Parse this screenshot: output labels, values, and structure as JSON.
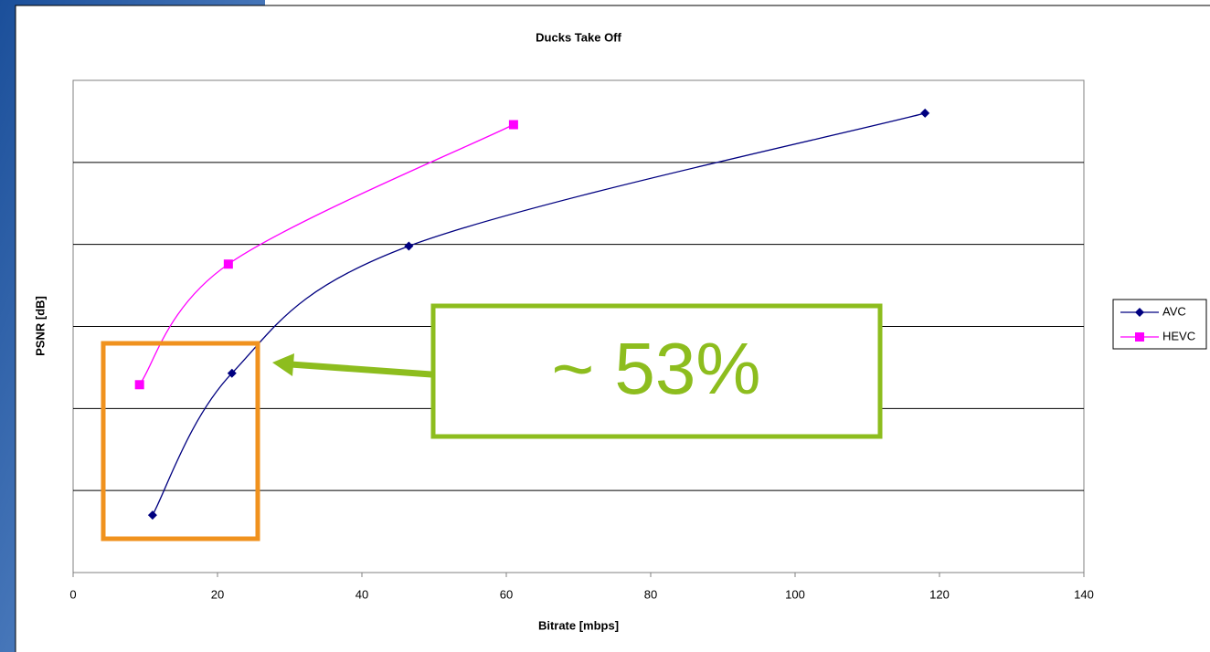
{
  "chart_data": {
    "type": "line",
    "title": "Ducks Take Off",
    "x_label": "Bitrate [mbps]",
    "y_label": "PSNR [dB]",
    "series": [
      {
        "name": "AVC",
        "color": "#000080",
        "marker": "diamond",
        "x": [
          11,
          22,
          46.5,
          118
        ],
        "values": [
          0.7,
          2.43,
          3.98,
          5.6
        ]
      },
      {
        "name": "HEVC",
        "color": "#ff00ff",
        "marker": "square",
        "x": [
          9.2,
          21.5,
          61
        ],
        "values": [
          2.29,
          3.76,
          5.46
        ]
      }
    ],
    "xlim": [
      0,
      140
    ],
    "xticks": [
      0,
      20,
      40,
      60,
      80,
      100,
      120,
      140
    ],
    "ylim": [
      0,
      6
    ],
    "ygrid": [
      1,
      2,
      3,
      4,
      5
    ],
    "grid": true,
    "legend": "right",
    "annotation": "~ 53%"
  }
}
